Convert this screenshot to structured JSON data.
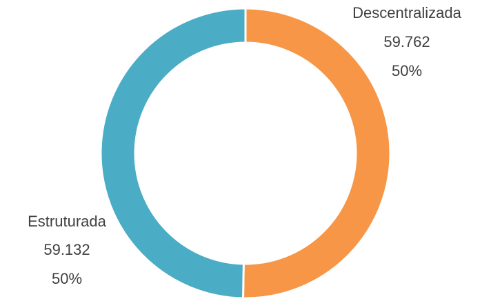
{
  "chart_data": {
    "type": "donut",
    "categories": [
      "Descentralizada",
      "Estruturada"
    ],
    "values": [
      59762,
      59132
    ],
    "value_labels": [
      "59.762",
      "59.132"
    ],
    "percent_labels": [
      "50%",
      "50%"
    ],
    "colors": [
      "#f79646",
      "#4bacc6"
    ]
  }
}
